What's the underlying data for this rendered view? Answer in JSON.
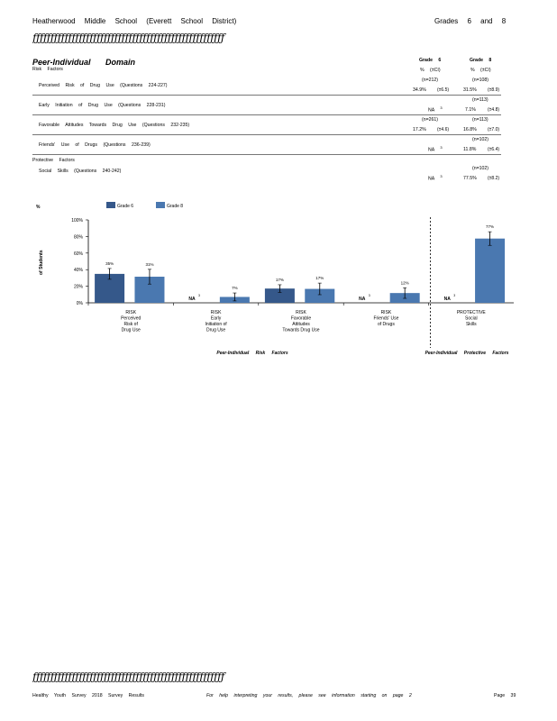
{
  "header": {
    "school": "Heatherwood Middle School (Everett School District)",
    "grades": "Grades 6 and 8",
    "rule": "ƒƒƒƒƒƒƒƒƒƒƒƒƒƒƒƒƒƒƒƒƒƒƒƒƒƒƒƒƒƒƒƒƒƒƒƒƒƒƒƒƒƒƒƒƒƒƒƒƒƒƒƒƒƒ"
  },
  "domain_title": "Peer-Individual Domain",
  "columns": {
    "g6_head": "Grade 6",
    "g8_head": "Grade 8",
    "pct_ci": "% (±CI)"
  },
  "risk_label": "Risk Factors",
  "protective_label": "Protective Factors",
  "rows": [
    {
      "label": "Perceived Risk of Drug Use (Questions 224-227)",
      "g6_n": "(n=212)",
      "g6_val": "34.9%",
      "g6_ci": "(±6.5)",
      "g8_n": "(n=108)",
      "g8_val": "31.5%",
      "g8_ci": "(±8.9)"
    },
    {
      "label": "Early Initiation of Drug Use (Questions 228-231)",
      "g6_n": "",
      "g6_val": "NA",
      "g6_sup": "3",
      "g6_ci": "",
      "g8_n": "(n=113)",
      "g8_val": "7.1%",
      "g8_ci": "(±4.8)"
    },
    {
      "label": "Favorable Attitudes Towards Drug Use (Questions 232-235)",
      "g6_n": "(n=261)",
      "g6_val": "17.2%",
      "g6_ci": "(±4.6)",
      "g8_n": "(n=113)",
      "g8_val": "16.8%",
      "g8_ci": "(±7.0)"
    },
    {
      "label": "Friends' Use of Drugs (Questions 236-239)",
      "g6_n": "",
      "g6_val": "NA",
      "g6_sup": "3",
      "g6_ci": "",
      "g8_n": "(n=102)",
      "g8_val": "11.8%",
      "g8_ci": "(±6.4)"
    },
    {
      "label": "Social Skills (Questions 240-242)",
      "g6_n": "",
      "g6_val": "NA",
      "g6_sup": "3",
      "g6_ci": "",
      "g8_n": "(n=102)",
      "g8_val": "77.5%",
      "g8_ci": "(±8.2)"
    }
  ],
  "chart_data": {
    "type": "bar",
    "ylabel_top": "%",
    "ylabel": "of Students",
    "ylim": [
      0,
      100
    ],
    "yticks": [
      "0%",
      "20%",
      "40%",
      "60%",
      "80%",
      "100%"
    ],
    "legend": [
      "Grade 6",
      "Grade 8"
    ],
    "colors": {
      "grade6": "#35588a",
      "grade8": "#4a78b0"
    },
    "categories": [
      [
        "RISK",
        "Perceived",
        "Risk of",
        "Drug Use"
      ],
      [
        "RISK",
        "Early",
        "Initiation of",
        "Drug Use"
      ],
      [
        "RISK",
        "Favorable",
        "Attitudes",
        "Towards Drug Use"
      ],
      [
        "RISK",
        "Friends' Use",
        "of Drugs"
      ],
      [
        "PROTECTIVE",
        "Social",
        "Skills"
      ]
    ],
    "series": [
      {
        "name": "Grade 6",
        "values": [
          34.9,
          null,
          17.2,
          null,
          null
        ],
        "ci": [
          6.5,
          null,
          4.6,
          null,
          null
        ],
        "labels": [
          "35%",
          "NA",
          "17%",
          "NA",
          "NA"
        ]
      },
      {
        "name": "Grade 8",
        "values": [
          31.5,
          7.1,
          16.8,
          11.8,
          77.5
        ],
        "ci": [
          8.9,
          4.8,
          7.0,
          6.4,
          8.2
        ],
        "labels": [
          "31%",
          "7%",
          "17%",
          "12%",
          "77%"
        ]
      }
    ],
    "na_sup": "3",
    "group_labels": {
      "risk": "Peer-Individual Risk Factors",
      "protective": "Peer-Individual Protective Factors"
    }
  },
  "footer": {
    "left": "Healthy Youth Survey 2018 Survey Results",
    "center": "For help interpreting your results, please see information starting on page 2",
    "page": "Page 39"
  }
}
